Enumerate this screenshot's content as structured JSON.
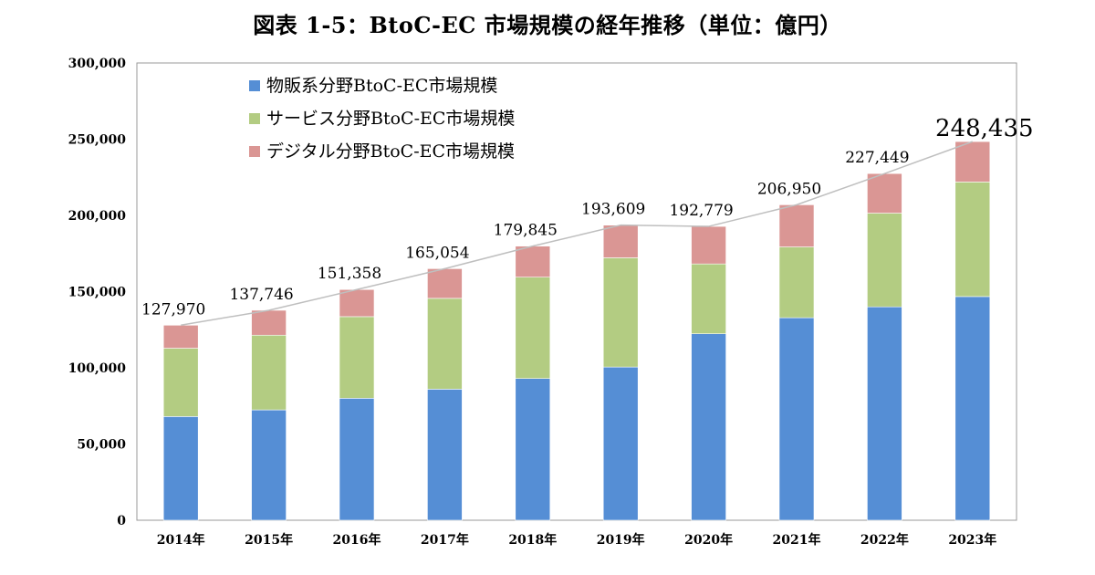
{
  "chart_data": {
    "type": "bar",
    "stacked": true,
    "title": "図表 1-5：BtoC-EC 市場規模の経年推移（単位：億円）",
    "categories": [
      "2014年",
      "2015年",
      "2016年",
      "2017年",
      "2018年",
      "2019年",
      "2020年",
      "2021年",
      "2022年",
      "2023年"
    ],
    "series": [
      {
        "name": "物販系分野BtoC-EC市場規模",
        "color": "#558ed5",
        "values": [
          68043,
          72398,
          80043,
          86008,
          92992,
          100515,
          122333,
          132865,
          139997,
          146760
        ]
      },
      {
        "name": "サービス分野BtoC-EC市場規模",
        "color": "#b3cc82",
        "values": [
          44816,
          49014,
          53532,
          59568,
          66471,
          71672,
          45832,
          46424,
          61477,
          75169
        ]
      },
      {
        "name": "デジタル分野BtoC-EC市場規模",
        "color": "#da9694",
        "values": [
          15111,
          16334,
          17782,
          19478,
          20382,
          21422,
          24614,
          27661,
          25975,
          26506
        ]
      }
    ],
    "totals": [
      "127,970",
      "137,746",
      "151,358",
      "165,054",
      "179,845",
      "193,609",
      "192,779",
      "206,950",
      "227,449",
      "248,435"
    ],
    "total_values": [
      127970,
      137746,
      151358,
      165054,
      179845,
      193609,
      192779,
      206950,
      227449,
      248435
    ],
    "ylim": [
      0,
      300000
    ],
    "yticks": [
      "0",
      "50,000",
      "100,000",
      "150,000",
      "200,000",
      "250,000",
      "300,000"
    ],
    "ytick_values": [
      0,
      50000,
      100000,
      150000,
      200000,
      250000,
      300000
    ],
    "grid": false,
    "legend_position": "top-left",
    "trend_line": true,
    "trend_line_color": "#bfbfbf"
  }
}
